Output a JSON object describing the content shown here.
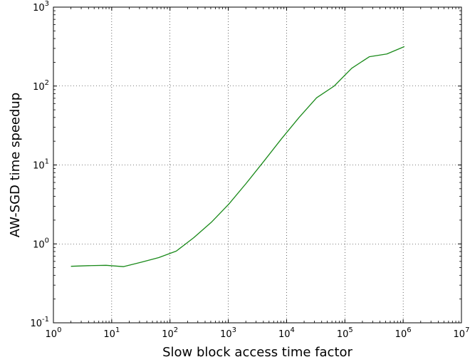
{
  "chart_data": {
    "type": "line",
    "title": "",
    "xlabel": "Slow block access time factor",
    "ylabel": "AW-SGD time speedup",
    "xscale": "log",
    "yscale": "log",
    "xlim": [
      1,
      10000000
    ],
    "ylim": [
      0.1,
      1000
    ],
    "grid": true,
    "x_ticks": [
      {
        "base": "10",
        "exp": "0"
      },
      {
        "base": "10",
        "exp": "1"
      },
      {
        "base": "10",
        "exp": "2"
      },
      {
        "base": "10",
        "exp": "3"
      },
      {
        "base": "10",
        "exp": "4"
      },
      {
        "base": "10",
        "exp": "5"
      },
      {
        "base": "10",
        "exp": "6"
      },
      {
        "base": "10",
        "exp": "7"
      }
    ],
    "y_ticks": [
      {
        "base": "10",
        "exp": "-1"
      },
      {
        "base": "10",
        "exp": "0"
      },
      {
        "base": "10",
        "exp": "1"
      },
      {
        "base": "10",
        "exp": "2"
      },
      {
        "base": "10",
        "exp": "3"
      }
    ],
    "series": [
      {
        "color": "#1a8a1a",
        "x": [
          2,
          4,
          8,
          16,
          32,
          64,
          128,
          256,
          512,
          1024,
          2048,
          4096,
          8192,
          16384,
          32768,
          65536,
          131072,
          262144,
          524288,
          1048576
        ],
        "y": [
          0.52,
          0.53,
          0.535,
          0.515,
          0.585,
          0.67,
          0.81,
          1.2,
          1.88,
          3.2,
          5.9,
          11.2,
          21.5,
          40,
          71,
          100,
          168,
          235,
          255,
          316
        ]
      }
    ]
  }
}
